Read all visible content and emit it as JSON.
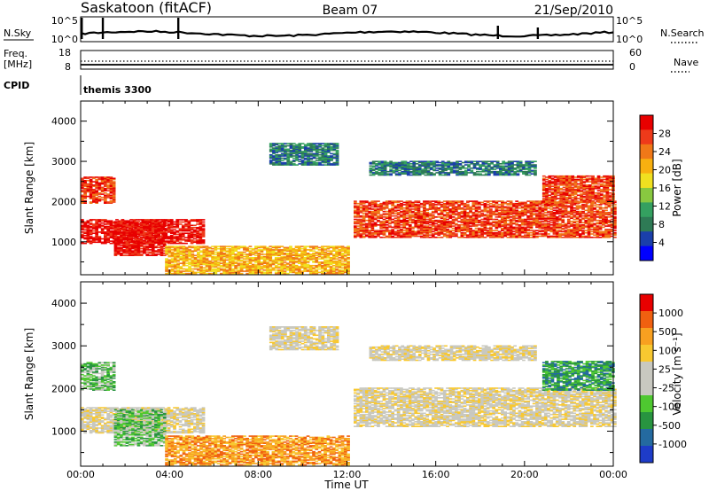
{
  "header": {
    "station": "Saskatoon (fitACF)",
    "beam": "Beam 07",
    "date": "21/Sep/2010"
  },
  "summary_panels": {
    "nsky": {
      "label": "N.Sky",
      "ticks": [
        "10^5",
        "10^0"
      ]
    },
    "nsearch": {
      "label": "N.Search",
      "ticks": [
        "10^5",
        "10^0"
      ]
    },
    "freq": {
      "label_lines": [
        "Freq.",
        "[MHz]"
      ],
      "ticks": [
        "18",
        "8"
      ]
    },
    "nave": {
      "label": "Nave",
      "ticks": [
        "60",
        "0"
      ]
    },
    "cpid": {
      "label": "CPID",
      "value": "themis 3300"
    }
  },
  "colors": {
    "power_scale": [
      "#0000ff",
      "#1a3faa",
      "#2e7a55",
      "#34a060",
      "#88c840",
      "#f0e020",
      "#f8b010",
      "#f07818",
      "#ee3a1a",
      "#e80000"
    ],
    "velocity_scale": [
      "#e80000",
      "#f06010",
      "#f8a020",
      "#f8c830",
      "#c8c8c0",
      "#c8c8c0",
      "#4ec830",
      "#289440",
      "#246aa0",
      "#1e3cc8"
    ]
  },
  "chart_data": [
    {
      "type": "heatmap",
      "name": "power",
      "ylabel": "Slant Range [km]",
      "yticks": [
        "1000",
        "2000",
        "3000",
        "4000"
      ],
      "ylim": [
        180,
        4500
      ],
      "xlim": [
        0,
        24
      ],
      "colorbar": {
        "label": "Power [dB]",
        "ticks": [
          "4",
          "8",
          "12",
          "16",
          "20",
          "24",
          "28"
        ],
        "range": [
          0,
          32
        ]
      },
      "echo_regions": [
        {
          "t": [
            0.0,
            1.5
          ],
          "r": [
            1950,
            2600
          ],
          "level": 8
        },
        {
          "t": [
            0.0,
            5.5
          ],
          "r": [
            950,
            1550
          ],
          "level": 9
        },
        {
          "t": [
            1.5,
            3.8
          ],
          "r": [
            650,
            1500
          ],
          "level": 9
        },
        {
          "t": [
            3.8,
            12.0
          ],
          "r": [
            200,
            900
          ],
          "level": 6
        },
        {
          "t": [
            12.3,
            24.0
          ],
          "r": [
            1100,
            2000
          ],
          "level": 8
        },
        {
          "t": [
            13.0,
            20.5
          ],
          "r": [
            2650,
            3000
          ],
          "level": 2
        },
        {
          "t": [
            20.8,
            24.0
          ],
          "r": [
            1950,
            2650
          ],
          "level": 8
        },
        {
          "t": [
            8.5,
            11.5
          ],
          "r": [
            2900,
            3450
          ],
          "level": 2
        }
      ]
    },
    {
      "type": "heatmap",
      "name": "velocity",
      "ylabel": "Slant Range [km]",
      "yticks": [
        "1000",
        "2000",
        "3000",
        "4000"
      ],
      "ylim": [
        180,
        4500
      ],
      "xlim": [
        0,
        24
      ],
      "colorbar": {
        "label": "Velocity [m s⁻¹]",
        "ticks": [
          "1000",
          "500",
          "100",
          "25",
          "-25",
          "-100",
          "-500",
          "-1000"
        ],
        "range": [
          -1000,
          1000
        ]
      },
      "echo_regions": [
        {
          "t": [
            0.0,
            1.5
          ],
          "r": [
            1950,
            2600
          ],
          "level": 6
        },
        {
          "t": [
            0.0,
            5.5
          ],
          "r": [
            950,
            1550
          ],
          "level": 4
        },
        {
          "t": [
            1.5,
            3.8
          ],
          "r": [
            650,
            1500
          ],
          "level": 6
        },
        {
          "t": [
            3.8,
            12.0
          ],
          "r": [
            200,
            900
          ],
          "level": 2
        },
        {
          "t": [
            12.3,
            24.0
          ],
          "r": [
            1100,
            2000
          ],
          "level": 4
        },
        {
          "t": [
            13.0,
            20.5
          ],
          "r": [
            2650,
            3000
          ],
          "level": 4
        },
        {
          "t": [
            20.8,
            24.0
          ],
          "r": [
            1950,
            2650
          ],
          "level": 7
        },
        {
          "t": [
            8.5,
            11.5
          ],
          "r": [
            2900,
            3450
          ],
          "level": 4
        }
      ]
    }
  ],
  "x_axis": {
    "label": "Time UT",
    "ticks": [
      "00:00",
      "04:00",
      "08:00",
      "12:00",
      "16:00",
      "20:00",
      "00:00"
    ]
  }
}
